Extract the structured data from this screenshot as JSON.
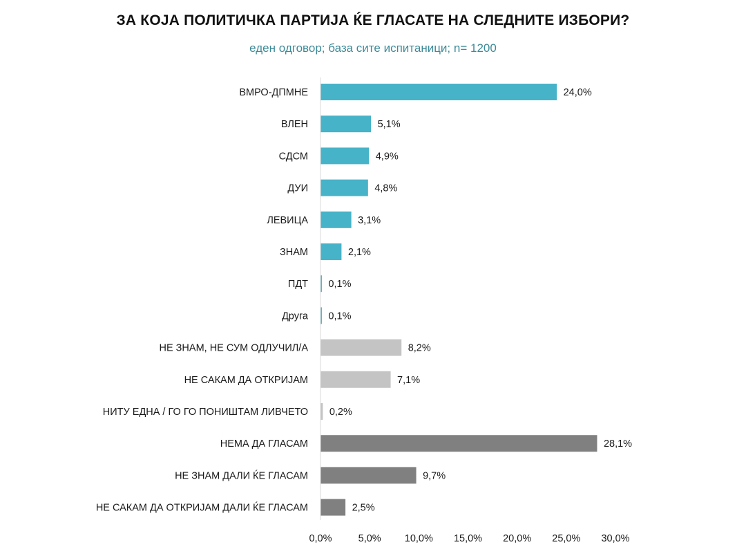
{
  "chart_data": {
    "type": "bar",
    "orientation": "horizontal",
    "title": "ЗА КОЈА ПОЛИТИЧКА ПАРТИЈА ЌЕ ГЛАСАТЕ НА СЛЕДНИТЕ ИЗБОРИ?",
    "subtitle": "еден одговор; база сите испитаници; n= 1200",
    "categories": [
      "ВМРО-ДПМНЕ",
      "ВЛЕН",
      "СДСМ",
      "ДУИ",
      "ЛЕВИЦА",
      "ЗНАМ",
      "ПДТ",
      "Друга",
      "НЕ ЗНАМ, НЕ СУМ ОДЛУЧИЛ/А",
      "НЕ САКАМ ДА ОТКРИЈАМ",
      "НИТУ ЕДНА / ГО ГО ПОНИШТАМ ЛИВЧЕТО",
      "НЕМА ДА ГЛАСАМ",
      "НЕ ЗНАМ ДАЛИ ЌЕ ГЛАСАМ",
      "НЕ САКАМ ДА ОТКРИЈАМ ДАЛИ ЌЕ ГЛАСАМ"
    ],
    "values": [
      24.0,
      5.1,
      4.9,
      4.8,
      3.1,
      2.1,
      0.1,
      0.1,
      8.2,
      7.1,
      0.2,
      28.1,
      9.7,
      2.5
    ],
    "value_labels": [
      "24,0%",
      "5,1%",
      "4,9%",
      "4,8%",
      "3,1%",
      "2,1%",
      "0,1%",
      "0,1%",
      "8,2%",
      "7,1%",
      "0,2%",
      "28,1%",
      "9,7%",
      "2,5%"
    ],
    "groups": [
      "party",
      "party",
      "party",
      "party",
      "party",
      "party",
      "party",
      "party",
      "undecided",
      "undecided",
      "undecided",
      "abstain",
      "abstain",
      "abstain"
    ],
    "colors": {
      "party": "#46b3c8",
      "undecided": "#c4c4c4",
      "abstain": "#808080"
    },
    "xlim": [
      0,
      30
    ],
    "xticks": [
      0,
      5,
      10,
      15,
      20,
      25,
      30
    ],
    "xtick_labels": [
      "0,0%",
      "5,0%",
      "10,0%",
      "15,0%",
      "20,0%",
      "25,0%",
      "30,0%"
    ],
    "grid": false,
    "legend": "none"
  }
}
